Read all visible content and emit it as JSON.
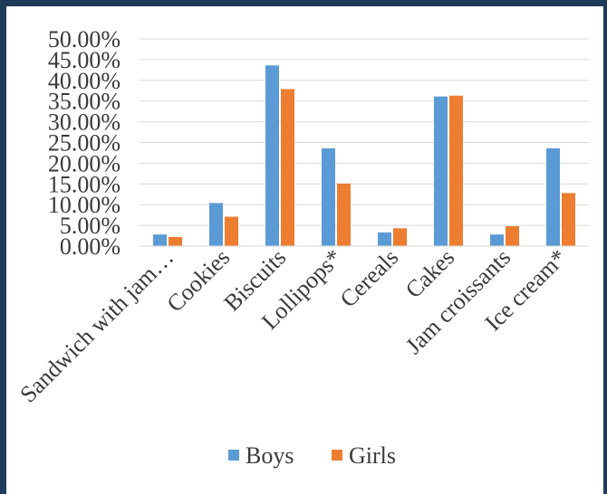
{
  "chart_data": {
    "type": "bar",
    "title": "",
    "xlabel": "",
    "ylabel": "",
    "ylim": [
      0,
      50
    ],
    "y_ticks": [
      "0.00%",
      "5.00%",
      "10.00%",
      "15.00%",
      "20.00%",
      "25.00%",
      "30.00%",
      "35.00%",
      "40.00%",
      "45.00%",
      "50.00%"
    ],
    "grid": true,
    "legend_position": "bottom",
    "categories": [
      "Sandwich with jam…",
      "Cookies",
      "Biscuits",
      "Lollipops*",
      "Cereals",
      "Cakes",
      "Jam croissants",
      "Ice cream*"
    ],
    "series": [
      {
        "name": "Boys",
        "color": "#5b9bd5",
        "values": [
          2.8,
          10.4,
          43.6,
          23.6,
          3.3,
          36.1,
          2.8,
          23.6
        ]
      },
      {
        "name": "Girls",
        "color": "#ed7d31",
        "values": [
          2.2,
          7.1,
          37.9,
          15.1,
          4.3,
          36.3,
          4.8,
          12.8
        ]
      }
    ]
  }
}
